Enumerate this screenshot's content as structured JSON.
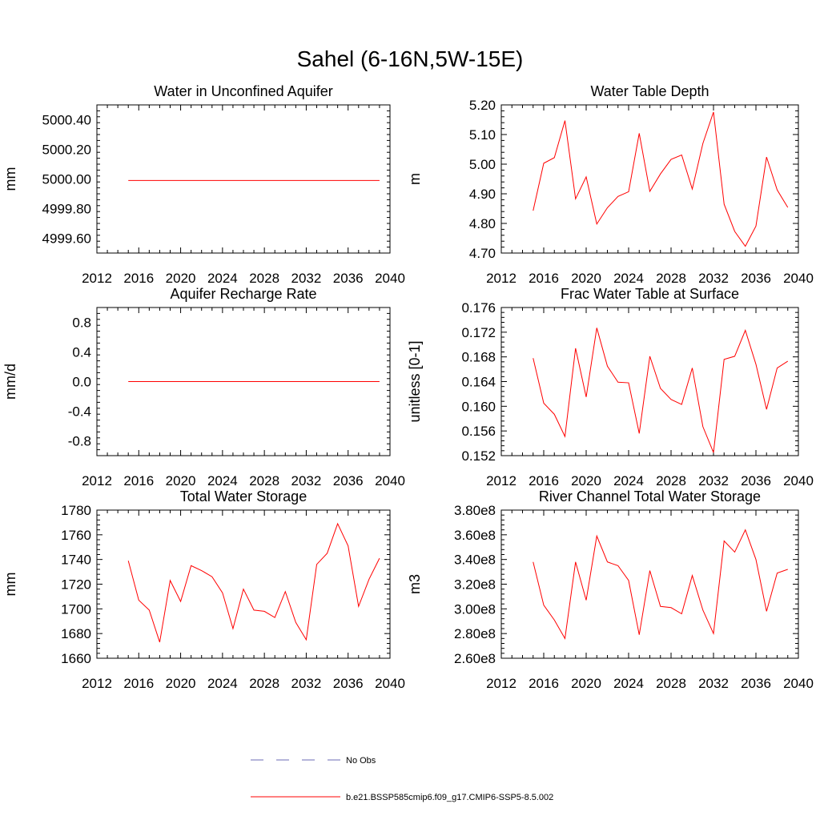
{
  "figure": {
    "title": "Sahel (6-16N,5W-15E)"
  },
  "colors": {
    "series": "#ff0000",
    "obs": "#6b6bb5",
    "axis": "#000000"
  },
  "legend": {
    "obs_label": "No Obs",
    "model_label": "b.e21.BSSP585cmip6.f09_g17.CMIP6-SSP5-8.5.002"
  },
  "chart_data": [
    {
      "type": "line",
      "title": "Water in Unconfined Aquifer",
      "ylabel": "mm",
      "xlim": [
        2012,
        2040
      ],
      "ylim": [
        4999.5,
        5000.5
      ],
      "xticks": [
        2012,
        2016,
        2020,
        2024,
        2028,
        2032,
        2036,
        2040
      ],
      "yticks": [
        4999.6,
        4999.8,
        5000.0,
        5000.2,
        5000.4
      ],
      "ytick_labels": [
        "4999.60",
        "4999.80",
        "5000.00",
        "5000.20",
        "5000.40"
      ],
      "x": [
        2015,
        2016,
        2017,
        2018,
        2019,
        2020,
        2021,
        2022,
        2023,
        2024,
        2025,
        2026,
        2027,
        2028,
        2029,
        2030,
        2031,
        2032,
        2033,
        2034,
        2035,
        2036,
        2037,
        2038,
        2039
      ],
      "values": [
        4999.99,
        4999.99,
        4999.99,
        4999.99,
        4999.99,
        4999.99,
        4999.99,
        4999.99,
        4999.99,
        4999.99,
        4999.99,
        4999.99,
        4999.99,
        4999.99,
        4999.99,
        4999.99,
        4999.99,
        4999.99,
        4999.99,
        4999.99,
        4999.99,
        4999.99,
        4999.99,
        4999.99,
        4999.99
      ]
    },
    {
      "type": "line",
      "title": "Water Table Depth",
      "ylabel": "m",
      "xlim": [
        2012,
        2040
      ],
      "ylim": [
        4.7,
        5.2
      ],
      "xticks": [
        2012,
        2016,
        2020,
        2024,
        2028,
        2032,
        2036,
        2040
      ],
      "yticks": [
        4.7,
        4.8,
        4.9,
        5.0,
        5.1,
        5.2
      ],
      "ytick_labels": [
        "4.70",
        "4.80",
        "4.90",
        "5.00",
        "5.10",
        "5.20"
      ],
      "x": [
        2015,
        2016,
        2017,
        2018,
        2019,
        2020,
        2021,
        2022,
        2023,
        2024,
        2025,
        2026,
        2027,
        2028,
        2029,
        2030,
        2031,
        2032,
        2033,
        2034,
        2035,
        2036,
        2037,
        2038,
        2039
      ],
      "values": [
        4.843,
        5.003,
        5.022,
        5.147,
        4.883,
        4.957,
        4.798,
        4.853,
        4.891,
        4.907,
        5.104,
        4.908,
        4.967,
        5.016,
        5.031,
        4.916,
        5.07,
        5.176,
        4.865,
        4.773,
        4.723,
        4.791,
        5.024,
        4.913,
        4.854
      ]
    },
    {
      "type": "line",
      "title": "Aquifer Recharge Rate",
      "ylabel": "mm/d",
      "xlim": [
        2012,
        2040
      ],
      "ylim": [
        -1.0,
        1.0
      ],
      "xticks": [
        2012,
        2016,
        2020,
        2024,
        2028,
        2032,
        2036,
        2040
      ],
      "yticks": [
        -0.8,
        -0.4,
        0.0,
        0.4,
        0.8
      ],
      "ytick_labels": [
        "-0.8",
        "-0.4",
        "0.0",
        "0.4",
        "0.8"
      ],
      "x": [
        2015,
        2016,
        2017,
        2018,
        2019,
        2020,
        2021,
        2022,
        2023,
        2024,
        2025,
        2026,
        2027,
        2028,
        2029,
        2030,
        2031,
        2032,
        2033,
        2034,
        2035,
        2036,
        2037,
        2038,
        2039
      ],
      "values": [
        0.0,
        0.0,
        0.0,
        0.0,
        0.0,
        0.0,
        0.0,
        0.0,
        0.0,
        0.0,
        0.0,
        0.0,
        0.0,
        0.0,
        0.0,
        0.0,
        0.0,
        0.0,
        0.0,
        0.0,
        0.0,
        0.0,
        0.0,
        0.0,
        0.0
      ]
    },
    {
      "type": "line",
      "title": "Frac Water Table at Surface",
      "ylabel": "unitless [0-1]",
      "xlim": [
        2012,
        2040
      ],
      "ylim": [
        0.152,
        0.176
      ],
      "xticks": [
        2012,
        2016,
        2020,
        2024,
        2028,
        2032,
        2036,
        2040
      ],
      "yticks": [
        0.152,
        0.156,
        0.16,
        0.164,
        0.168,
        0.172,
        0.176
      ],
      "ytick_labels": [
        "0.152",
        "0.156",
        "0.160",
        "0.164",
        "0.168",
        "0.172",
        "0.176"
      ],
      "x": [
        2015,
        2016,
        2017,
        2018,
        2019,
        2020,
        2021,
        2022,
        2023,
        2024,
        2025,
        2026,
        2027,
        2028,
        2029,
        2030,
        2031,
        2032,
        2033,
        2034,
        2035,
        2036,
        2037,
        2038,
        2039
      ],
      "values": [
        0.1678,
        0.1605,
        0.1587,
        0.1551,
        0.1694,
        0.1615,
        0.1727,
        0.1665,
        0.1639,
        0.1638,
        0.1556,
        0.1681,
        0.1629,
        0.1611,
        0.1603,
        0.1662,
        0.1567,
        0.1525,
        0.1676,
        0.1681,
        0.1723,
        0.1668,
        0.1595,
        0.1662,
        0.1673
      ]
    },
    {
      "type": "line",
      "title": "Total Water Storage",
      "ylabel": "mm",
      "xlim": [
        2012,
        2040
      ],
      "ylim": [
        1660,
        1780
      ],
      "xticks": [
        2012,
        2016,
        2020,
        2024,
        2028,
        2032,
        2036,
        2040
      ],
      "yticks": [
        1660,
        1680,
        1700,
        1720,
        1740,
        1760,
        1780
      ],
      "ytick_labels": [
        "1660",
        "1680",
        "1700",
        "1720",
        "1740",
        "1760",
        "1780"
      ],
      "x": [
        2015,
        2016,
        2017,
        2018,
        2019,
        2020,
        2021,
        2022,
        2023,
        2024,
        2025,
        2026,
        2027,
        2028,
        2029,
        2030,
        2031,
        2032,
        2033,
        2034,
        2035,
        2036,
        2037,
        2038,
        2039
      ],
      "values": [
        1739,
        1707,
        1699,
        1673,
        1723,
        1706,
        1735,
        1731,
        1726,
        1713,
        1684,
        1716,
        1699,
        1698,
        1693,
        1714,
        1689,
        1675,
        1736,
        1745,
        1769,
        1751,
        1702,
        1724,
        1741
      ]
    },
    {
      "type": "line",
      "title": "River Channel Total Water Storage",
      "ylabel": "m3",
      "xlim": [
        2012,
        2040
      ],
      "ylim": [
        260000000.0,
        380000000.0
      ],
      "xticks": [
        2012,
        2016,
        2020,
        2024,
        2028,
        2032,
        2036,
        2040
      ],
      "yticks": [
        260000000.0,
        280000000.0,
        300000000.0,
        320000000.0,
        340000000.0,
        360000000.0,
        380000000.0
      ],
      "ytick_labels": [
        "2.60e8",
        "2.80e8",
        "3.00e8",
        "3.20e8",
        "3.40e8",
        "3.60e8",
        "3.80e8"
      ],
      "x": [
        2015,
        2016,
        2017,
        2018,
        2019,
        2020,
        2021,
        2022,
        2023,
        2024,
        2025,
        2026,
        2027,
        2028,
        2029,
        2030,
        2031,
        2032,
        2033,
        2034,
        2035,
        2036,
        2037,
        2038,
        2039
      ],
      "values": [
        338000000.0,
        303000000.0,
        291000000.0,
        276000000.0,
        338000000.0,
        307000000.0,
        359000000.0,
        338000000.0,
        335000000.0,
        323000000.0,
        279000000.0,
        331000000.0,
        302000000.0,
        301000000.0,
        296000000.0,
        327000000.0,
        299000000.0,
        280000000.0,
        355000000.0,
        346000000.0,
        364000000.0,
        340000000.0,
        298000000.0,
        329000000.0,
        332000000.0
      ]
    }
  ]
}
